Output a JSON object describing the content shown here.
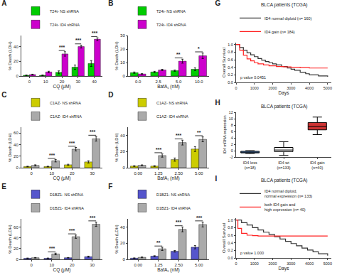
{
  "chart_data": [
    {
      "type": "bar",
      "title": "A",
      "xlabel": "CQ (μM)",
      "ylabel": "% Death (LDH)",
      "categories": [
        "0",
        "10",
        "20",
        "30",
        "40"
      ],
      "series": [
        {
          "name": "T24t- NS shRNA",
          "color": "#00cc00",
          "values": [
            1.0,
            1.0,
            5.0,
            12.0,
            17.0
          ],
          "errors": [
            0.5,
            0.5,
            2.0,
            3.0,
            4.0
          ]
        },
        {
          "name": "T24t- ID4 shRNA",
          "color": "#cc00cc",
          "values": [
            2.0,
            5.5,
            30.0,
            40.0,
            50.0
          ],
          "errors": [
            0.5,
            1.0,
            3.0,
            2.0,
            2.0
          ]
        }
      ],
      "ylim": [
        0,
        55
      ],
      "yticks": [
        0,
        20,
        40
      ],
      "grid": false,
      "legend": "top",
      "annotations": [
        {
          "category": "20",
          "text": "***"
        },
        {
          "category": "30",
          "text": "***"
        },
        {
          "category": "40",
          "text": "***"
        }
      ]
    },
    {
      "type": "bar",
      "title": "B",
      "xlabel": "BafA₁ (nM)",
      "ylabel": "% Death (LDH)",
      "categories": [
        "0.0",
        "2.5",
        "5.0",
        "10.0"
      ],
      "series": [
        {
          "name": "T24t- NS shRNA",
          "color": "#00cc00",
          "values": [
            2.5,
            3.0,
            4.0,
            5.0
          ],
          "errors": [
            0.5,
            0.5,
            0.5,
            1.0
          ]
        },
        {
          "name": "T24t- ID4 shRNA",
          "color": "#cc00cc",
          "values": [
            1.5,
            4.5,
            11.0,
            15.0
          ],
          "errors": [
            0.3,
            0.5,
            1.5,
            2.0
          ]
        }
      ],
      "ylim": [
        0,
        30
      ],
      "yticks": [
        0,
        10,
        20,
        30
      ],
      "grid": false,
      "legend": "top",
      "annotations": [
        {
          "category": "5.0",
          "text": "**"
        },
        {
          "category": "10.0",
          "text": "*"
        }
      ]
    },
    {
      "type": "bar",
      "title": "C",
      "xlabel": "CQ (μM)",
      "ylabel": "% Death (LDH)",
      "categories": [
        "0",
        "10",
        "20",
        "30"
      ],
      "series": [
        {
          "name": "C1AZ- NS shRNA",
          "color": "#cccc00",
          "values": [
            2.0,
            2.0,
            5.0,
            10.0
          ],
          "errors": [
            0.5,
            0.5,
            1.0,
            2.0
          ]
        },
        {
          "name": "C1AZ- ID4 shRNA",
          "color": "#aaaaaa",
          "values": [
            4.0,
            12.0,
            32.0,
            50.0
          ],
          "errors": [
            1.0,
            2.0,
            3.0,
            4.0
          ]
        }
      ],
      "ylim": [
        0,
        70
      ],
      "yticks": [
        0,
        20,
        40,
        60
      ],
      "grid": false,
      "legend": "top",
      "annotations": [
        {
          "category": "10",
          "text": "***"
        },
        {
          "category": "20",
          "text": "***"
        },
        {
          "category": "30",
          "text": "***"
        }
      ]
    },
    {
      "type": "bar",
      "title": "D",
      "xlabel": "BafA₁ (nM)",
      "ylabel": "% Death (LDH)",
      "categories": [
        "0.00",
        "1.25",
        "2.50",
        "5.00"
      ],
      "series": [
        {
          "name": "C1AZ- NS shRNA",
          "color": "#cccc00",
          "values": [
            2.0,
            2.0,
            10.0,
            23.0
          ],
          "errors": [
            0.5,
            0.5,
            2.0,
            3.0
          ]
        },
        {
          "name": "C1AZ- ID4 shRNA",
          "color": "#aaaaaa",
          "values": [
            3.0,
            15.0,
            31.0,
            35.0
          ],
          "errors": [
            0.5,
            2.0,
            3.0,
            3.0
          ]
        }
      ],
      "ylim": [
        0,
        50
      ],
      "yticks": [
        0,
        20,
        40
      ],
      "grid": false,
      "legend": "top",
      "annotations": [
        {
          "category": "1.25",
          "text": "***"
        },
        {
          "category": "2.50",
          "text": "***"
        },
        {
          "category": "5.00",
          "text": "**"
        }
      ]
    },
    {
      "type": "bar",
      "title": "E",
      "xlabel": "CQ (μM)",
      "ylabel": "% Death (LDH)",
      "categories": [
        "0",
        "10",
        "20",
        "30"
      ],
      "series": [
        {
          "name": "D1BZ1- NS shRNA",
          "color": "#5555cc",
          "values": [
            2.0,
            2.0,
            3.0,
            5.0
          ],
          "errors": [
            0.5,
            0.5,
            0.5,
            1.0
          ]
        },
        {
          "name": "D1BZ1- ID4 shRNA",
          "color": "#aaaaaa",
          "values": [
            3.0,
            10.0,
            42.0,
            65.0
          ],
          "errors": [
            0.5,
            1.5,
            3.0,
            4.0
          ]
        }
      ],
      "ylim": [
        0,
        75
      ],
      "yticks": [
        0,
        20,
        40,
        60
      ],
      "grid": false,
      "legend": "top",
      "annotations": [
        {
          "category": "10",
          "text": "***"
        },
        {
          "category": "20",
          "text": "***"
        },
        {
          "category": "30",
          "text": "***"
        }
      ]
    },
    {
      "type": "bar",
      "title": "F",
      "xlabel": "BafA₁ (nM)",
      "ylabel": "% Death (LDH)",
      "categories": [
        "0.00",
        "1.25",
        "2.50",
        "5.00"
      ],
      "series": [
        {
          "name": "D1BZ1- NS shRNA",
          "color": "#5555cc",
          "values": [
            1.5,
            4.0,
            10.0,
            15.0
          ],
          "errors": [
            0.3,
            0.5,
            1.0,
            2.0
          ]
        },
        {
          "name": "D1BZ1- ID4 shRNA",
          "color": "#aaaaaa",
          "values": [
            2.5,
            13.0,
            37.0,
            43.0
          ],
          "errors": [
            0.5,
            2.0,
            3.0,
            3.0
          ]
        }
      ],
      "ylim": [
        0,
        50
      ],
      "yticks": [
        0,
        20,
        40
      ],
      "grid": false,
      "legend": "top",
      "annotations": [
        {
          "category": "1.25",
          "text": "**"
        },
        {
          "category": "2.50",
          "text": "***"
        },
        {
          "category": "5.00",
          "text": "***"
        }
      ]
    },
    {
      "type": "line",
      "title": "G",
      "subtitle": "BLCA patients (TCGA)",
      "xlabel": "Days",
      "ylabel": "Overall Survival",
      "series": [
        {
          "name": "ID4 normal diploid (n= 160)",
          "color": "#333333",
          "line_style": "step",
          "x": [
            0,
            200,
            400,
            600,
            800,
            1000,
            1200,
            1400,
            1600,
            1800,
            2000,
            2200,
            2500,
            2800,
            3000,
            3200,
            3500,
            3800,
            4000,
            4500,
            5000
          ],
          "values": [
            1.0,
            0.92,
            0.85,
            0.78,
            0.73,
            0.68,
            0.63,
            0.59,
            0.55,
            0.52,
            0.49,
            0.46,
            0.42,
            0.38,
            0.35,
            0.32,
            0.27,
            0.23,
            0.2,
            0.17,
            0.15
          ]
        },
        {
          "name": "ID4 gain (n= 184)",
          "color": "#ff2222",
          "line_style": "step",
          "x": [
            0,
            200,
            400,
            600,
            800,
            1000,
            1200,
            1500,
            1800,
            2200,
            2600,
            3000,
            3500,
            4000,
            4500,
            5000
          ],
          "values": [
            1.0,
            0.85,
            0.72,
            0.62,
            0.57,
            0.52,
            0.49,
            0.46,
            0.44,
            0.42,
            0.41,
            0.4,
            0.39,
            0.38,
            0.38,
            0.38
          ]
        }
      ],
      "xlim": [
        0,
        5200
      ],
      "xticks": [
        0,
        1000,
        2000,
        3000,
        4000,
        5000
      ],
      "ylim": [
        0,
        1.05
      ],
      "yticks": [
        {
          "value": 0,
          "label": "0.0"
        },
        0.2,
        0.4,
        0.6,
        0.8,
        {
          "value": 1,
          "label": "1.0"
        }
      ],
      "grid": false,
      "legend": "top",
      "annotations": [
        {
          "text": "p value 0.0451"
        }
      ]
    },
    {
      "type": "box",
      "title": "H",
      "subtitle": "BLCA patients (TCGA)",
      "ylabel": "ID4 mRNA expression",
      "categories": [
        "ID4 loss\n(n=18)",
        "ID4 wt\n(n=133)",
        "ID4 gain\n(n=40)"
      ],
      "colors": [
        "#66aaff",
        "#ffffff",
        "#cc3333"
      ],
      "stats": [
        {
          "median": -0.5,
          "q1": -0.7,
          "q3": -0.2,
          "whisker_low": -0.9,
          "whisker_high": 0.0
        },
        {
          "median": 0.2,
          "q1": -0.3,
          "q3": 1.0,
          "whisker_low": -1.5,
          "whisker_high": 2.8
        },
        {
          "median": 7.5,
          "q1": 6.5,
          "q3": 8.8,
          "whisker_low": 5.0,
          "whisker_high": 10.5
        }
      ],
      "ylim": [
        -2,
        12
      ],
      "yticks": [
        -2,
        0,
        2,
        4,
        6,
        8,
        10,
        12
      ],
      "grid": false
    },
    {
      "type": "line",
      "title": "I",
      "subtitle": "BLCA patients (TCGA)",
      "xlabel": "Days",
      "ylabel": "Overall Survival",
      "series": [
        {
          "name": "ID4 normal diploid,\nnormal expression (n= 133)",
          "color": "#333333",
          "line_style": "step",
          "x": [
            0,
            300,
            600,
            900,
            1200,
            1500,
            1800,
            2100,
            2400,
            2700,
            3000,
            3300,
            3600,
            3900,
            4200,
            4500,
            5000
          ],
          "values": [
            1.0,
            0.93,
            0.87,
            0.8,
            0.74,
            0.68,
            0.62,
            0.56,
            0.5,
            0.44,
            0.38,
            0.32,
            0.26,
            0.21,
            0.16,
            0.11,
            0.06
          ]
        },
        {
          "name": "both ID4 gain and\nhigh expression (n= 40)",
          "color": "#ff2222",
          "line_style": "step",
          "x": [
            0,
            100,
            300,
            600,
            900,
            1200,
            1500,
            2000,
            2500,
            3000,
            3500,
            4000,
            4500,
            5000
          ],
          "values": [
            1.0,
            0.78,
            0.65,
            0.6,
            0.59,
            0.58,
            0.58,
            0.58,
            0.58,
            0.58,
            0.58,
            0.58,
            0.58,
            0.58
          ]
        }
      ],
      "xlim": [
        0,
        5200
      ],
      "xticks": [
        0,
        1000,
        2000,
        3000,
        4000,
        5000
      ],
      "ylim": [
        0,
        1.05
      ],
      "yticks": [
        {
          "value": 0,
          "label": "0.0"
        },
        0.2,
        0.4,
        0.6,
        0.8,
        {
          "value": 1,
          "label": "1.0"
        }
      ],
      "grid": false,
      "legend": "top",
      "annotations": [
        {
          "text": "p value 1.000"
        }
      ]
    }
  ]
}
